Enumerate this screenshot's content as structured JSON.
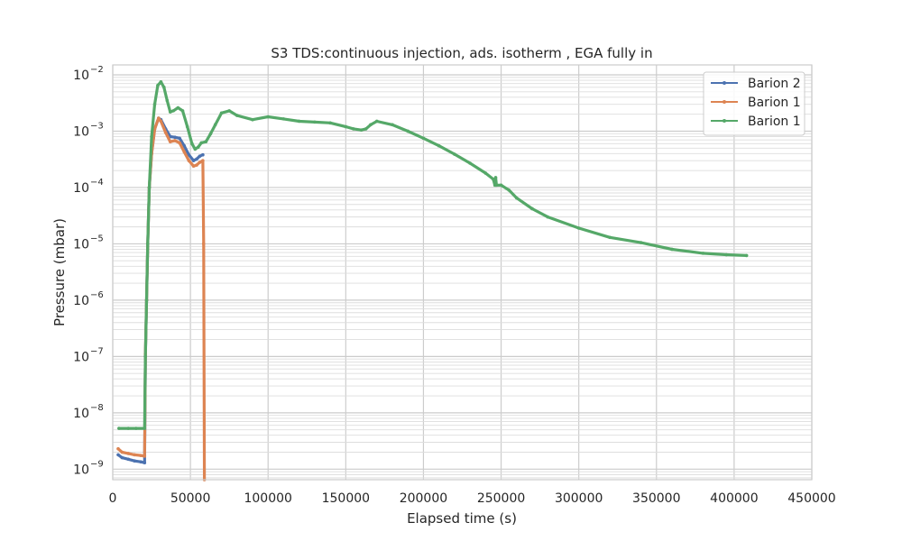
{
  "chart_data": {
    "type": "line",
    "title": "S3 TDS:continuous injection, ads. isotherm , EGA fully in",
    "xlabel": "Elapsed time (s)",
    "ylabel": "Pressure (mbar)",
    "xlim": [
      0,
      450000
    ],
    "ylim": [
      6.5e-10,
      0.015
    ],
    "yscale": "log",
    "grid": true,
    "legend_position": "top-right",
    "x_ticks": [
      "0",
      "50000",
      "100000",
      "150000",
      "200000",
      "250000",
      "300000",
      "350000",
      "400000",
      "450000"
    ],
    "y_tick_mantissa": "10",
    "y_tick_exponents": [
      "−9",
      "−8",
      "−7",
      "−6",
      "−5",
      "−4",
      "−3",
      "−2"
    ],
    "series": [
      {
        "name": "Barion 2",
        "color": "#4c72b0",
        "x": [
          3500,
          6000,
          10000,
          14000,
          18000,
          20500,
          21000,
          21800,
          22500,
          23500,
          25000,
          27000,
          29500,
          31000,
          34000,
          37000,
          40000,
          43000,
          46000,
          49000,
          52000,
          54000,
          56000,
          58000
        ],
        "y": [
          1.8e-09,
          1.6e-09,
          1.5e-09,
          1.4e-09,
          1.35e-09,
          1.3e-09,
          1e-07,
          1e-06,
          1e-05,
          0.0001,
          0.0004,
          0.0011,
          0.0017,
          0.0016,
          0.0011,
          0.0008,
          0.00078,
          0.00075,
          0.00055,
          0.00038,
          0.0003,
          0.00032,
          0.00036,
          0.00038
        ]
      },
      {
        "name": "Barion 1",
        "color": "#dd8452",
        "x": [
          3500,
          6000,
          10000,
          14000,
          18000,
          20500,
          21000,
          21800,
          22500,
          23500,
          25000,
          27000,
          29500,
          31000,
          34000,
          37000,
          40000,
          43000,
          46000,
          49000,
          52000,
          54000,
          56000,
          58000,
          58500,
          59000
        ],
        "y": [
          2.3e-09,
          2e-09,
          1.9e-09,
          1.8e-09,
          1.75e-09,
          1.7e-09,
          1.1e-07,
          1e-06,
          1e-05,
          0.0001,
          0.0004,
          0.0011,
          0.0017,
          0.0015,
          0.00095,
          0.00065,
          0.00068,
          0.00062,
          0.00043,
          0.0003,
          0.00024,
          0.00025,
          0.00028,
          0.0003,
          1e-05,
          6.5e-10
        ]
      },
      {
        "name": "Barion 1",
        "color": "#55a868",
        "x": [
          4000,
          10000,
          15000,
          20500,
          21000,
          21800,
          22500,
          23500,
          25000,
          27000,
          29000,
          31000,
          33000,
          35000,
          37000,
          39000,
          42000,
          45000,
          48000,
          51000,
          53000,
          55000,
          57000,
          60000,
          63000,
          66000,
          70000,
          75000,
          80000,
          90000,
          100000,
          110000,
          120000,
          130000,
          140000,
          150000,
          155000,
          160000,
          163000,
          166000,
          170000,
          180000,
          190000,
          200000,
          210000,
          220000,
          230000,
          240000,
          245000,
          246000,
          246500,
          247000,
          250000,
          255000,
          260000,
          270000,
          280000,
          300000,
          320000,
          340000,
          360000,
          380000,
          395000,
          408000
        ],
        "y": [
          5.3e-09,
          5.3e-09,
          5.3e-09,
          5.3e-09,
          1e-07,
          1e-06,
          1e-05,
          0.0001,
          0.0008,
          0.003,
          0.0065,
          0.0075,
          0.006,
          0.0035,
          0.0022,
          0.0023,
          0.0026,
          0.0023,
          0.0012,
          0.0006,
          0.00048,
          0.00052,
          0.00062,
          0.00065,
          0.0009,
          0.0013,
          0.0021,
          0.0023,
          0.0019,
          0.0016,
          0.0018,
          0.00165,
          0.0015,
          0.00145,
          0.0014,
          0.0012,
          0.0011,
          0.00105,
          0.0011,
          0.0013,
          0.0015,
          0.0013,
          0.001,
          0.00075,
          0.00055,
          0.00039,
          0.00027,
          0.00018,
          0.00014,
          0.00011,
          0.00015,
          0.00011,
          0.00011,
          9e-05,
          6.5e-05,
          4.2e-05,
          3e-05,
          1.9e-05,
          1.3e-05,
          1.05e-05,
          8e-06,
          6.8e-06,
          6.4e-06,
          6.2e-06
        ]
      }
    ]
  }
}
